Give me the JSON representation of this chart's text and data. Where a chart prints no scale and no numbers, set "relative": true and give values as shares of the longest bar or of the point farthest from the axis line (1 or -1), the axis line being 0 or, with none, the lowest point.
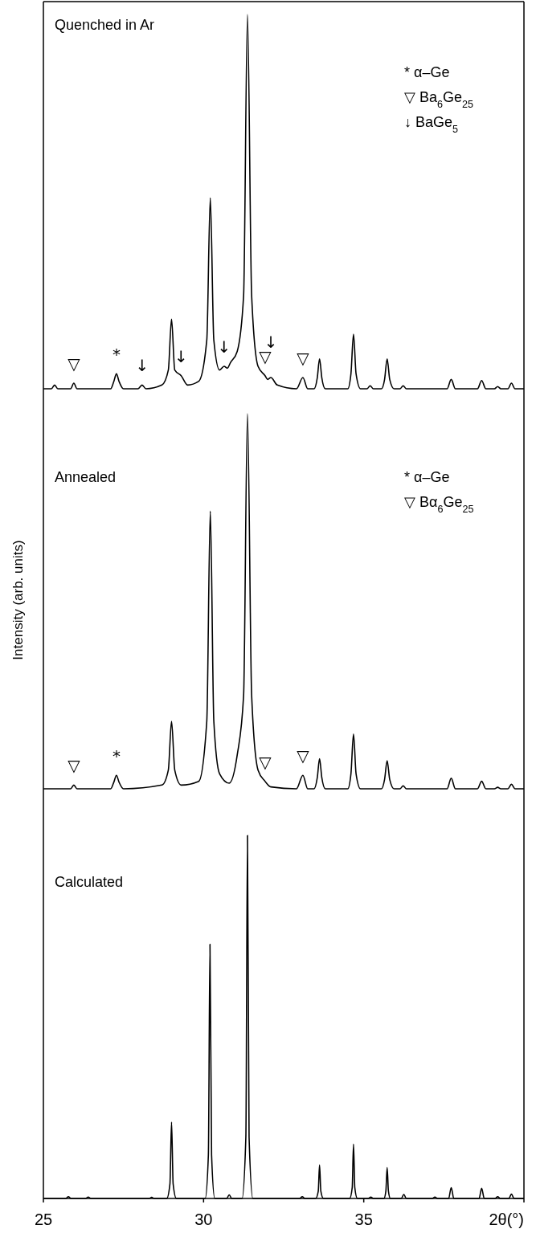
{
  "chart_data": [
    {
      "type": "line",
      "title": "Quenched in Ar",
      "relative": true,
      "xlim": [
        25,
        40
      ],
      "tick_labels": false,
      "x": [
        25,
        25.25,
        25.35,
        25.45,
        25.85,
        25.95,
        26.05,
        27.1,
        27.2,
        27.28,
        27.36,
        27.5,
        27.95,
        28.08,
        28.2,
        28.7,
        28.9,
        29.0,
        29.1,
        29.3,
        29.5,
        29.85,
        30.1,
        30.21,
        30.32,
        30.5,
        30.64,
        30.74,
        30.84,
        31.05,
        31.25,
        31.37,
        31.5,
        31.7,
        31.92,
        32.0,
        32.1,
        32.3,
        32.9,
        33.1,
        33.25,
        33.45,
        33.55,
        33.62,
        33.69,
        33.8,
        34.5,
        34.6,
        34.68,
        34.76,
        34.9,
        35.1,
        35.2,
        35.3,
        35.55,
        35.65,
        35.73,
        35.81,
        35.95,
        36.13,
        36.23,
        36.33,
        37.6,
        37.73,
        37.86,
        38.55,
        38.68,
        38.81,
        39.08,
        39.18,
        39.28,
        39.5,
        39.61,
        39.72,
        40
      ],
      "series": [
        {
          "color": "#000000",
          "values": [
            0,
            0,
            0.01,
            0,
            0,
            0.015,
            0,
            0,
            0.02,
            0.04,
            0.02,
            0,
            0,
            0.01,
            0,
            0.01,
            0.05,
            0.186,
            0.05,
            0.035,
            0.01,
            0.02,
            0.13,
            0.51,
            0.13,
            0.05,
            0.06,
            0.055,
            0.07,
            0.1,
            0.25,
            1,
            0.25,
            0.06,
            0.035,
            0.025,
            0.03,
            0.01,
            0,
            0.03,
            0,
            0,
            0.03,
            0.08,
            0.03,
            0,
            0,
            0.04,
            0.146,
            0.04,
            0,
            0,
            0.008,
            0,
            0,
            0.025,
            0.08,
            0.025,
            0,
            0,
            0.008,
            0,
            0,
            0.025,
            0,
            0,
            0.022,
            0,
            0,
            0.006,
            0,
            0,
            0.015,
            0,
            0
          ]
        }
      ],
      "annotations": [
        "* α–Ge",
        "▽ Ba$_{6}$Ge$_{25}$",
        "↓ BaGe$_{5}$",
        {
          "text": "▽",
          "x": 25.95,
          "y": 0.015
        },
        {
          "text": "*",
          "x": 27.28,
          "y": 0.04
        },
        {
          "text": "↓",
          "x": 28.08,
          "y": 0.01
        },
        {
          "text": "↓",
          "x": 29.3,
          "y": 0.035
        },
        {
          "text": "↓",
          "x": 30.64,
          "y": 0.06
        },
        {
          "text": "▽",
          "x": 31.92,
          "y": 0.035
        },
        {
          "text": "↓",
          "x": 32.1,
          "y": 0.03
        },
        {
          "text": "▽",
          "x": 33.1,
          "y": 0.03
        }
      ]
    },
    {
      "type": "line",
      "title": "Annealed",
      "ylabel": "Intensity (arb. units)",
      "relative": true,
      "xlim": [
        25,
        40
      ],
      "tick_labels": false,
      "x": [
        25,
        25.85,
        25.95,
        26.05,
        27.1,
        27.2,
        27.28,
        27.36,
        27.5,
        28.7,
        28.9,
        29.0,
        29.1,
        29.3,
        29.85,
        30.1,
        30.21,
        30.32,
        30.5,
        30.8,
        31.05,
        31.25,
        31.37,
        31.5,
        31.7,
        31.92,
        32.1,
        32.9,
        33.1,
        33.25,
        33.45,
        33.55,
        33.62,
        33.69,
        33.8,
        34.5,
        34.6,
        34.68,
        34.76,
        34.9,
        35.55,
        35.65,
        35.73,
        35.81,
        35.95,
        36.13,
        36.23,
        36.33,
        37.6,
        37.73,
        37.86,
        38.55,
        38.68,
        38.81,
        39.08,
        39.18,
        39.28,
        39.5,
        39.61,
        39.72,
        40
      ],
      "series": [
        {
          "color": "#000000",
          "values": [
            0,
            0,
            0.01,
            0,
            0,
            0.018,
            0.036,
            0.018,
            0,
            0.01,
            0.05,
            0.18,
            0.05,
            0.01,
            0.02,
            0.18,
            0.74,
            0.18,
            0.04,
            0.015,
            0.09,
            0.25,
            1,
            0.25,
            0.05,
            0.02,
            0.005,
            0,
            0.036,
            0,
            0,
            0.03,
            0.08,
            0.03,
            0,
            0,
            0.04,
            0.146,
            0.04,
            0,
            0,
            0.025,
            0.075,
            0.025,
            0,
            0,
            0.008,
            0,
            0,
            0.028,
            0,
            0,
            0.02,
            0,
            0,
            0.004,
            0,
            0,
            0.012,
            0,
            0
          ]
        }
      ],
      "annotations": [
        "* α–Ge",
        "▽ Bα$_{6}$Ge$_{25}$",
        {
          "text": "▽",
          "x": 25.95,
          "y": 0.01
        },
        {
          "text": "*",
          "x": 27.28,
          "y": 0.036
        },
        {
          "text": "▽",
          "x": 31.92,
          "y": 0.02
        },
        {
          "text": "▽",
          "x": 33.1,
          "y": 0.036
        }
      ]
    },
    {
      "type": "line",
      "title": "Calculated",
      "xlabel": "2θ(°)",
      "relative": true,
      "xlim": [
        25,
        40
      ],
      "xticks": [
        25,
        30,
        35,
        {
          "value": 40,
          "label": null
        }
      ],
      "tick_labels": "x",
      "x": [
        25,
        25.7,
        25.78,
        25.86,
        26.32,
        26.4,
        26.48,
        28.3,
        28.38,
        28.46,
        28.85,
        28.95,
        29.0,
        29.05,
        29.15,
        30.05,
        30.15,
        30.2,
        30.25,
        30.35,
        30.72,
        30.8,
        30.88,
        31.2,
        31.32,
        31.37,
        31.42,
        31.54,
        33.0,
        33.08,
        33.16,
        33.5,
        33.58,
        33.62,
        33.66,
        33.74,
        34.56,
        34.64,
        34.68,
        34.72,
        34.8,
        35.14,
        35.22,
        35.3,
        35.63,
        35.69,
        35.73,
        35.77,
        35.83,
        36.17,
        36.25,
        36.33,
        37.14,
        37.22,
        37.3,
        37.65,
        37.73,
        37.81,
        38.6,
        38.68,
        38.76,
        39.1,
        39.18,
        39.26,
        39.53,
        39.61,
        39.69,
        40
      ],
      "series": [
        {
          "color": "#000000",
          "values": [
            0,
            0,
            0.005,
            0,
            0,
            0.004,
            0,
            0,
            0.003,
            0,
            0,
            0.04,
            0.21,
            0.04,
            0,
            0,
            0.12,
            0.7,
            0.12,
            0,
            0,
            0.01,
            0,
            0,
            0.17,
            1,
            0.17,
            0,
            0,
            0.005,
            0,
            0,
            0.02,
            0.092,
            0.02,
            0,
            0,
            0.03,
            0.15,
            0.03,
            0,
            0,
            0.004,
            0,
            0,
            0.02,
            0.085,
            0.02,
            0,
            0,
            0.011,
            0,
            0,
            0.004,
            0,
            0,
            0.03,
            0,
            0,
            0.028,
            0,
            0,
            0.005,
            0,
            0,
            0.012,
            0,
            0
          ]
        }
      ]
    }
  ]
}
